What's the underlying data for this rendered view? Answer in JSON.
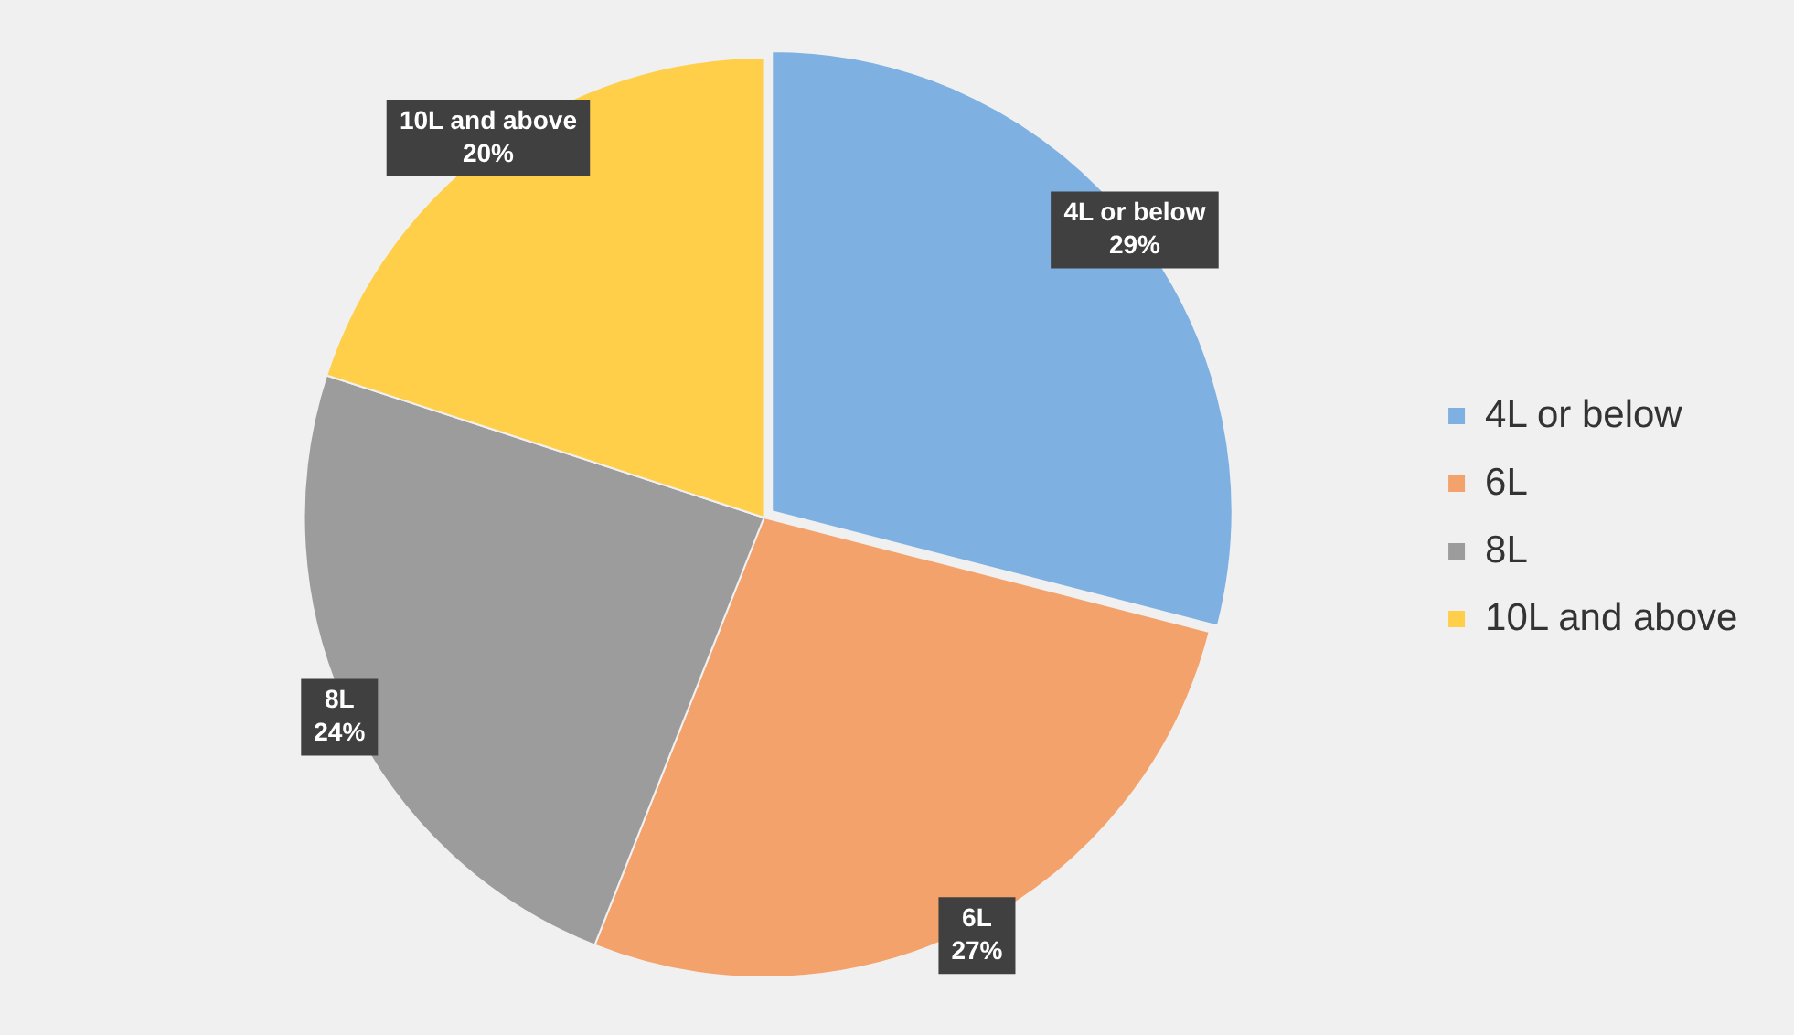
{
  "chart_data": {
    "type": "pie",
    "categories": [
      "4L or below",
      "6L",
      "8L",
      "10L and above"
    ],
    "values": [
      29,
      27,
      24,
      20
    ],
    "colors": [
      "#7eb0e2",
      "#f4a26c",
      "#9c9c9c",
      "#ffcf4a"
    ],
    "value_labels": [
      "29%",
      "27%",
      "24%",
      "20%"
    ],
    "legend": "right"
  }
}
